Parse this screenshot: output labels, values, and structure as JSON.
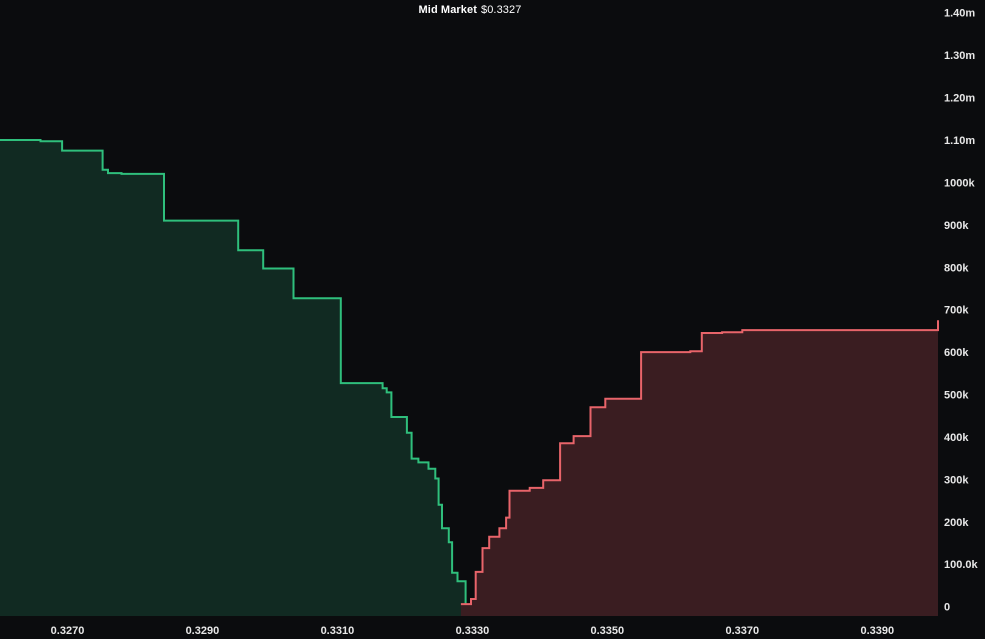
{
  "header": {
    "label": "Mid Market",
    "price": "$0.3327"
  },
  "colors": {
    "background": "#0b0c0e",
    "bid_line": "#2fbf7c",
    "bid_fill": "#112a22",
    "ask_line": "#e8646a",
    "ask_fill": "#3a1d21",
    "tick_text": "#e8e8e8"
  },
  "chart_data": {
    "type": "area",
    "title": "Mid Market $0.3327",
    "xlabel": "",
    "ylabel": "",
    "xlim": [
      0.326,
      0.3399
    ],
    "ylim": [
      -22000,
      1430000
    ],
    "grid": false,
    "x_ticks": [
      "0.3270",
      "0.3290",
      "0.3310",
      "0.3330",
      "0.3350",
      "0.3370",
      "0.3390"
    ],
    "x_tick_values": [
      0.327,
      0.329,
      0.331,
      0.333,
      0.335,
      0.337,
      0.339
    ],
    "y_ticks": [
      "1.40m",
      "1.30m",
      "1.20m",
      "1.10m",
      "1000k",
      "900k",
      "800k",
      "700k",
      "600k",
      "500k",
      "400k",
      "300k",
      "200k",
      "100.0k",
      "0"
    ],
    "y_tick_values": [
      1400000,
      1300000,
      1200000,
      1100000,
      1000000,
      900000,
      800000,
      700000,
      600000,
      500000,
      400000,
      300000,
      200000,
      100000,
      0
    ],
    "series": [
      {
        "side": "bid",
        "x": [
          0.326,
          0.3266,
          0.32692,
          0.32752,
          0.3276,
          0.3278,
          0.32843,
          0.32953,
          0.3299,
          0.33035,
          0.33105,
          0.33167,
          0.33173,
          0.3318,
          0.33203,
          0.3321,
          0.3322,
          0.33235,
          0.33245,
          0.3325,
          0.33255,
          0.33265,
          0.3327,
          0.33278,
          0.3329
        ],
        "y": [
          1100000,
          1097000,
          1075000,
          1030000,
          1022000,
          1020000,
          910000,
          840000,
          797000,
          727000,
          527000,
          515000,
          505000,
          447000,
          410000,
          349000,
          340000,
          325000,
          302000,
          240000,
          185000,
          152000,
          80000,
          60000,
          25000
        ]
      },
      {
        "side": "ask",
        "x": [
          0.33283,
          0.33298,
          0.33305,
          0.33315,
          0.33325,
          0.3334,
          0.3335,
          0.33355,
          0.33385,
          0.33405,
          0.3343,
          0.3345,
          0.33475,
          0.33497,
          0.3355,
          0.33623,
          0.3364,
          0.3367,
          0.337,
          0.3399
        ],
        "y": [
          6000,
          18000,
          82000,
          138000,
          165000,
          185000,
          210000,
          273000,
          280000,
          298000,
          385000,
          402000,
          470000,
          490000,
          600000,
          602000,
          645000,
          647000,
          652000,
          675000
        ]
      }
    ]
  }
}
